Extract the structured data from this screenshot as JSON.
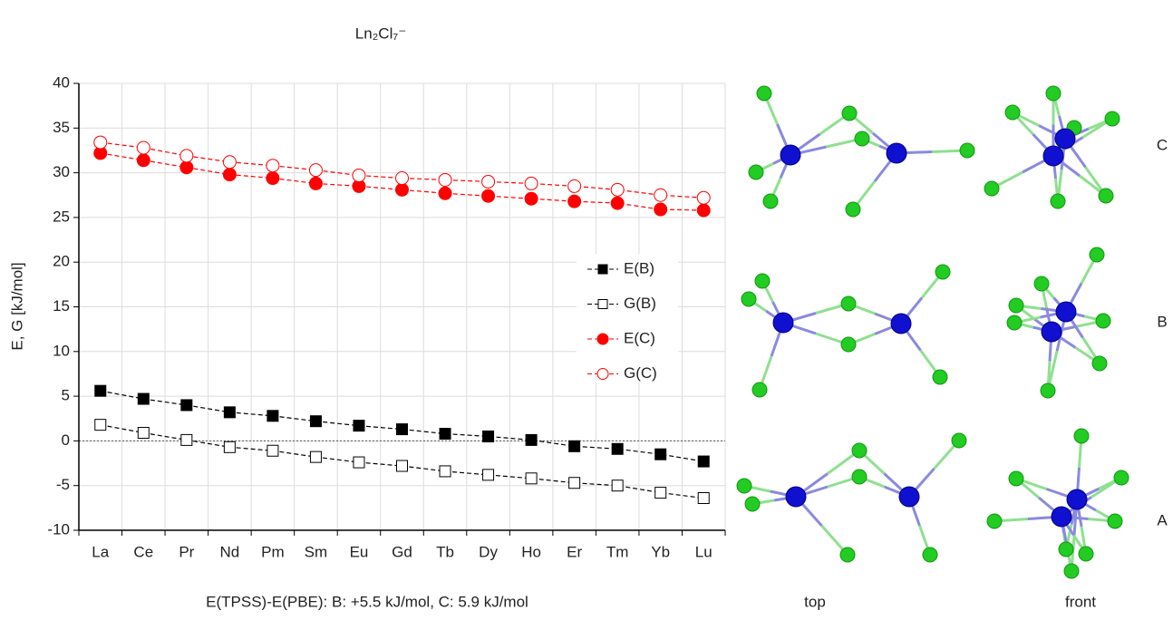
{
  "chart_data": {
    "type": "line",
    "title": "Ln₂Cl₇⁻",
    "y_label": "E, G  [kJ/mol]",
    "note": "E(TPSS)-E(PBE): B: +5.5 kJ/mol, C: 5.9 kJ/mol",
    "categories": [
      "La",
      "Ce",
      "Pr",
      "Nd",
      "Pm",
      "Sm",
      "Eu",
      "Gd",
      "Tb",
      "Dy",
      "Ho",
      "Er",
      "Tm",
      "Yb",
      "Lu"
    ],
    "series": [
      {
        "name": "E(B)",
        "color": "#000000",
        "marker": "square",
        "filled": true,
        "values": [
          5.6,
          4.7,
          4.0,
          3.2,
          2.8,
          2.2,
          1.7,
          1.3,
          0.8,
          0.5,
          0.1,
          -0.6,
          -0.9,
          -1.5,
          -2.3
        ]
      },
      {
        "name": "G(B)",
        "color": "#000000",
        "marker": "square",
        "filled": false,
        "values": [
          1.8,
          0.9,
          0.1,
          -0.7,
          -1.1,
          -1.8,
          -2.4,
          -2.8,
          -3.4,
          -3.8,
          -4.2,
          -4.7,
          -5.0,
          -5.8,
          -6.4
        ]
      },
      {
        "name": "E(C)",
        "color": "#ff0000",
        "marker": "circle",
        "filled": true,
        "values": [
          32.2,
          31.4,
          30.6,
          29.8,
          29.4,
          28.8,
          28.5,
          28.1,
          27.7,
          27.4,
          27.1,
          26.8,
          26.6,
          25.9,
          25.8
        ]
      },
      {
        "name": "G(C)",
        "color": "#ff0000",
        "marker": "circle",
        "filled": false,
        "values": [
          33.4,
          32.8,
          31.9,
          31.2,
          30.8,
          30.3,
          29.7,
          29.4,
          29.2,
          29.0,
          28.8,
          28.5,
          28.1,
          27.5,
          27.2
        ]
      }
    ],
    "ylim": [
      -10,
      40
    ],
    "yticks": [
      -10,
      -5,
      0,
      5,
      10,
      15,
      20,
      25,
      30,
      35,
      40
    ],
    "grid": true
  },
  "structures": {
    "rows": [
      "C",
      "B",
      "A"
    ],
    "views": [
      "top",
      "front"
    ]
  }
}
